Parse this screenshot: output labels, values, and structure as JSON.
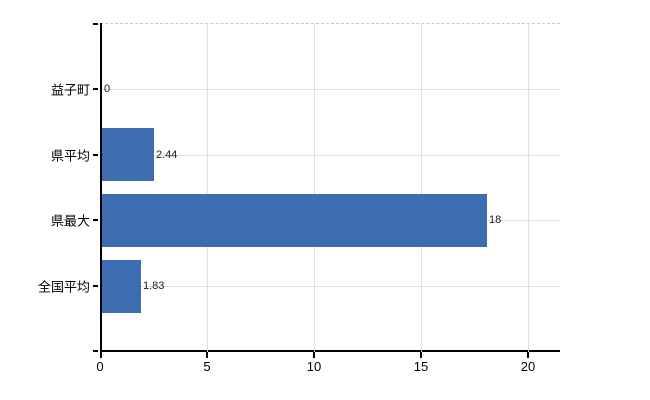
{
  "chart_data": {
    "type": "bar",
    "orientation": "horizontal",
    "title": "",
    "xlabel": "",
    "ylabel": "",
    "categories": [
      "益子町",
      "県平均",
      "県最大",
      "全国平均"
    ],
    "values": [
      0,
      2.44,
      18,
      1.83
    ],
    "value_labels": [
      "0",
      "2.44",
      "18",
      "1.83"
    ],
    "x_ticks": [
      0,
      5,
      10,
      15,
      20
    ],
    "xlim": [
      0,
      21.5
    ],
    "grid": true,
    "legend_position": "none",
    "bar_color": "#3c6db1",
    "gridline_color": "#dde2dd",
    "top_border_color": "#c9c9c9",
    "axis_color": "#000000",
    "text_color": "#000000",
    "background_color": "#ffffff"
  }
}
